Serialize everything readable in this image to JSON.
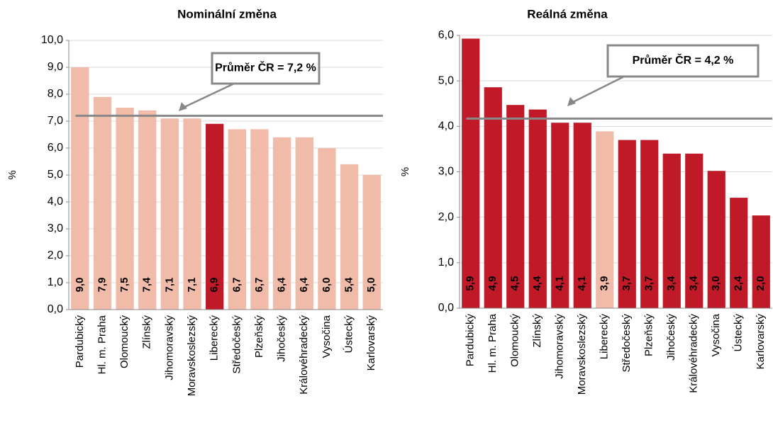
{
  "chart_data": [
    {
      "type": "bar",
      "title": "Nominální změna",
      "ylabel": "%",
      "categories": [
        "Pardubický",
        "Hl. m. Praha",
        "Olomoucký",
        "Zlínský",
        "Jihomoravský",
        "Moravskoslezský",
        "Liberecký",
        "Středočeský",
        "Plzeňský",
        "Jihočeský",
        "Královéhradecký",
        "Vysočina",
        "Ústecký",
        "Karlovarský"
      ],
      "values": [
        9.0,
        7.9,
        7.5,
        7.4,
        7.1,
        7.1,
        6.9,
        6.7,
        6.7,
        6.4,
        6.4,
        6.0,
        5.4,
        5.0
      ],
      "value_labels": [
        "9,0",
        "7,9",
        "7,5",
        "7,4",
        "7,1",
        "7,1",
        "6,9",
        "6,7",
        "6,7",
        "6,4",
        "6,4",
        "6,0",
        "5,4",
        "5,0"
      ],
      "colors": [
        "#f0bba9",
        "#f0bba9",
        "#f0bba9",
        "#f0bba9",
        "#f0bba9",
        "#f0bba9",
        "#c01a28",
        "#f0bba9",
        "#f0bba9",
        "#f0bba9",
        "#f0bba9",
        "#f0bba9",
        "#f0bba9",
        "#f0bba9"
      ],
      "ylim": [
        0,
        10
      ],
      "yticks": [
        {
          "value": 0,
          "label": "0,0"
        },
        {
          "value": 1,
          "label": "1,0"
        },
        {
          "value": 2,
          "label": "2,0"
        },
        {
          "value": 3,
          "label": "3,0"
        },
        {
          "value": 4,
          "label": "4,0"
        },
        {
          "value": 5,
          "label": "5,0"
        },
        {
          "value": 6,
          "label": "6,0"
        },
        {
          "value": 7,
          "label": "7,0"
        },
        {
          "value": 8,
          "label": "8,0"
        },
        {
          "value": 9,
          "label": "9,0"
        },
        {
          "value": 10,
          "label": "10,0"
        }
      ],
      "grid": true,
      "mean": 7.2,
      "annotation": "Průměr ČR = 7,2 %"
    },
    {
      "type": "bar",
      "title": "Reálná změna",
      "ylabel": "%",
      "categories": [
        "Pardubický",
        "Hl. m. Praha",
        "Olomoucký",
        "Zlínský",
        "Jihomoravský",
        "Moravskoslezský",
        "Liberecký",
        "Středočeský",
        "Plzeňský",
        "Jihočeský",
        "Královéhradecký",
        "Vysočina",
        "Ústecký",
        "Karlovarský"
      ],
      "values": [
        5.93,
        4.86,
        4.47,
        4.37,
        4.08,
        4.08,
        3.89,
        3.7,
        3.7,
        3.4,
        3.4,
        3.02,
        2.43,
        2.04
      ],
      "value_labels": [
        "5,9",
        "4,9",
        "4,5",
        "4,4",
        "4,1",
        "4,1",
        "3,9",
        "3,7",
        "3,7",
        "3,4",
        "3,4",
        "3,0",
        "2,4",
        "2,0"
      ],
      "colors": [
        "#c01a28",
        "#c01a28",
        "#c01a28",
        "#c01a28",
        "#c01a28",
        "#c01a28",
        "#f0bba9",
        "#c01a28",
        "#c01a28",
        "#c01a28",
        "#c01a28",
        "#c01a28",
        "#c01a28",
        "#c01a28"
      ],
      "ylim": [
        0,
        6
      ],
      "yticks": [
        {
          "value": 0,
          "label": "0,0"
        },
        {
          "value": 1,
          "label": "1,0"
        },
        {
          "value": 2,
          "label": "2,0"
        },
        {
          "value": 3,
          "label": "3,0"
        },
        {
          "value": 4,
          "label": "4,0"
        },
        {
          "value": 5,
          "label": "5,0"
        },
        {
          "value": 6,
          "label": "6,0"
        }
      ],
      "grid": true,
      "mean": 4.17,
      "annotation": "Průměr ČR = 4,2 %"
    }
  ]
}
